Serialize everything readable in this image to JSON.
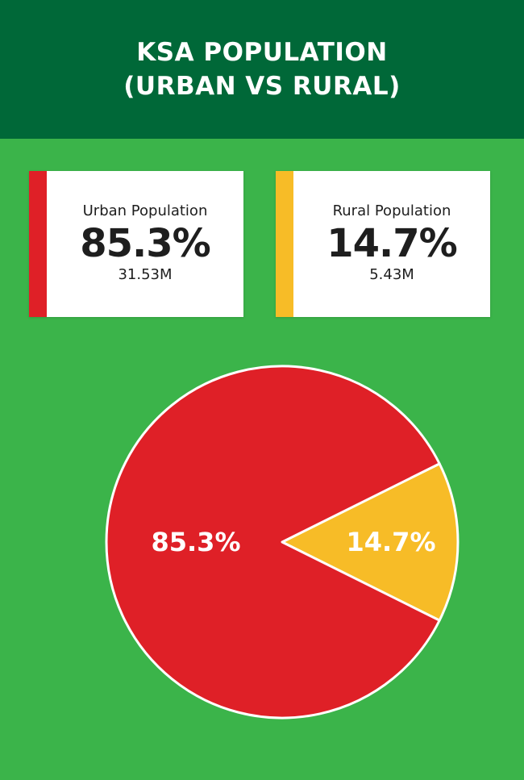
{
  "header": {
    "title_line1": "KSA POPULATION",
    "title_line2": "(URBAN VS RURAL)"
  },
  "cards": {
    "urban": {
      "label": "Urban Population",
      "percent": "85.3%",
      "count": "31.53M",
      "color": "#df2027"
    },
    "rural": {
      "label": "Rural Population",
      "percent": "14.7%",
      "count": "5.43M",
      "color": "#f7bc27"
    }
  },
  "colors": {
    "background": "#3bb44a",
    "header": "#006838"
  },
  "chart_data": {
    "type": "pie",
    "title": "KSA POPULATION (URBAN VS RURAL)",
    "slices": [
      {
        "name": "Urban Population",
        "value": 85.3,
        "label": "85.3%",
        "color": "#df2027"
      },
      {
        "name": "Rural Population",
        "value": 14.7,
        "label": "14.7%",
        "color": "#f7bc27"
      }
    ]
  }
}
